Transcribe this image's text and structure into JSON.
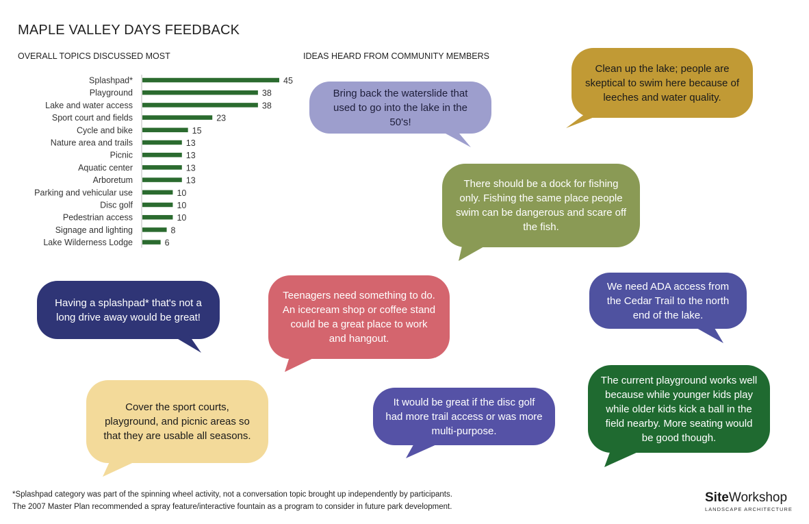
{
  "title": "MAPLE VALLEY DAYS FEEDBACK",
  "chart_heading": "OVERALL TOPICS DISCUSSED MOST",
  "ideas_heading": "IDEAS HEARD FROM COMMUNITY MEMBERS",
  "colors": {
    "bar": "#2b6b2f",
    "purple_light": "#9d9ecd",
    "gold": "#c19a35",
    "olive": "#8a9a55",
    "navy": "#2f3576",
    "rose": "#d4656e",
    "slate_blue": "#4f52a0",
    "cream": "#f3da9a",
    "violet": "#5552a6",
    "green": "#1f6a30"
  },
  "chart_data": {
    "type": "bar",
    "orientation": "horizontal",
    "title": "OVERALL TOPICS DISCUSSED MOST",
    "categories": [
      "Splashpad*",
      "Playground",
      "Lake and water access",
      "Sport court and fields",
      "Cycle and bike",
      "Nature area and trails",
      "Picnic",
      "Aquatic center",
      "Arboretum",
      "Parking and vehicular use",
      "Disc golf",
      "Pedestrian access",
      "Signage and lighting",
      "Lake Wilderness Lodge"
    ],
    "values": [
      45,
      38,
      38,
      23,
      15,
      13,
      13,
      13,
      13,
      10,
      10,
      10,
      8,
      6
    ],
    "xlim": [
      0,
      45
    ],
    "grid": false,
    "data_labels": true
  },
  "ideas": [
    {
      "text": "Bring back the waterslide that used to go into the lake in the 50's!",
      "color": "purple_light",
      "text_color": "#1e1e3a"
    },
    {
      "text": "Clean up the lake; people are skeptical to swim here because of leeches and water quality.",
      "color": "gold",
      "text_color": "#1a1a1a"
    },
    {
      "text": "There should be a dock for fishing only. Fishing the same place people swim can be dangerous and scare off the fish.",
      "color": "olive",
      "text_color": "#ffffff"
    },
    {
      "text": "Having a splashpad* that's not a long drive away would be great!",
      "color": "navy",
      "text_color": "#ffffff"
    },
    {
      "text": "Teenagers need something to do. An icecream shop or coffee stand could be a great place to work and hangout.",
      "color": "rose",
      "text_color": "#ffffff"
    },
    {
      "text": "We need ADA access from the Cedar Trail to the north end of the lake.",
      "color": "slate_blue",
      "text_color": "#ffffff"
    },
    {
      "text": "Cover the sport courts, playground, and picnic areas so that they are usable all seasons.",
      "color": "cream",
      "text_color": "#1a1a1a"
    },
    {
      "text": "It would be great if the disc golf had more trail access or was more multi-purpose.",
      "color": "violet",
      "text_color": "#ffffff"
    },
    {
      "text": "The current playground works well because while younger kids play while older kids kick a ball in the field nearby. More seating would be good though.",
      "color": "green",
      "text_color": "#ffffff"
    }
  ],
  "footnotes": [
    "*Splashpad category was part of the spinning wheel activity, not a conversation topic brought up independently by participants.",
    "The 2007 Master Plan recommended a spray feature/interactive fountain as a program to consider in future park development."
  ],
  "logo": {
    "bold": "Site",
    "regular": "Workshop",
    "tagline": "LANDSCAPE ARCHITECTURE"
  }
}
